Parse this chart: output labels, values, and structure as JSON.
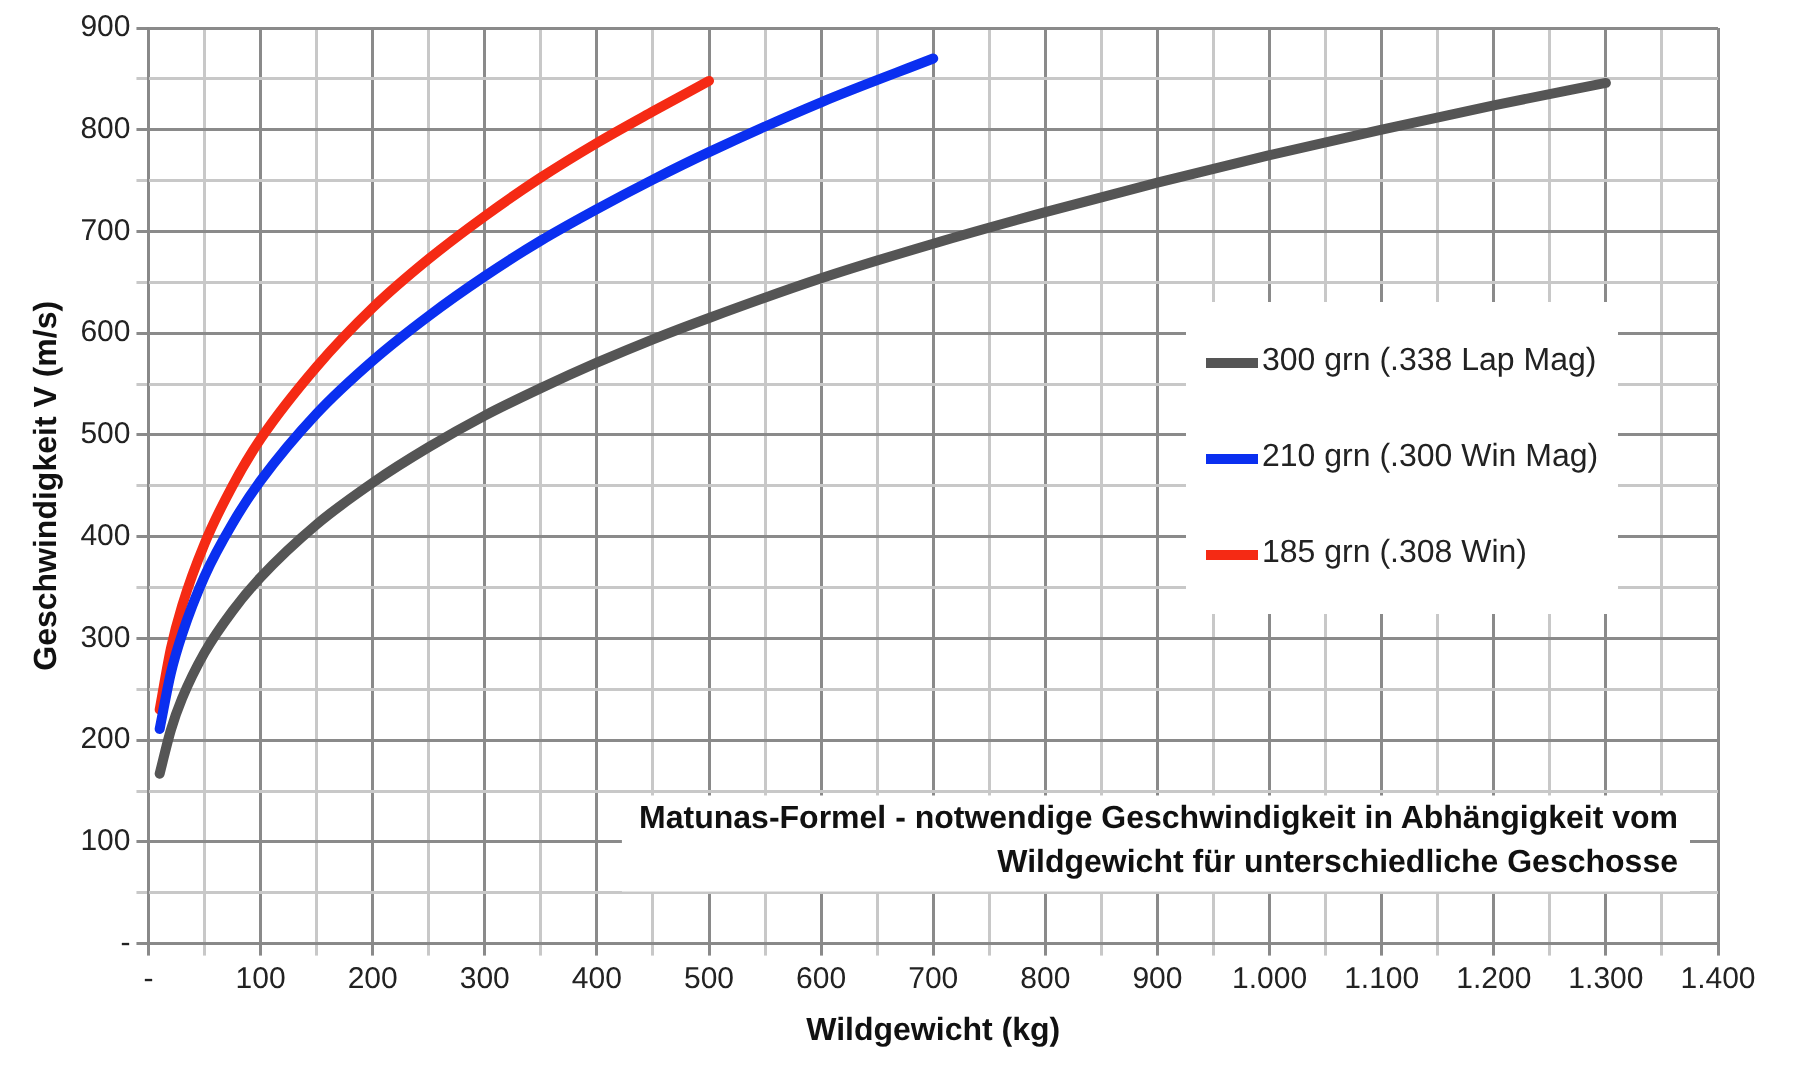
{
  "chart_data": {
    "type": "line",
    "title": "Matunas-Formel - notwendige Geschwindigkeit in Abhängigkeit vom\nWildgewicht für unterschiedliche Geschosse",
    "xlabel": "Wildgewicht (kg)",
    "ylabel": "Geschwindigkeit V (m/s)",
    "series": [
      {
        "name": "300 grn (.338 Lap Mag)",
        "color": "#555555",
        "x": [
          10,
          20,
          30,
          50,
          75,
          100,
          150,
          200,
          250,
          300,
          350,
          400,
          450,
          500,
          600,
          700,
          800,
          900,
          1000,
          1100,
          1200,
          1300
        ],
        "values": [
          167,
          210,
          241,
          286,
          327,
          360,
          412,
          453,
          488,
          519,
          546,
          571,
          594,
          615,
          654,
          688,
          719,
          748,
          775,
          800,
          824,
          846
        ]
      },
      {
        "name": "210 grn (.300 Win Mag)",
        "color": "#0a2ff0",
        "x": [
          10,
          20,
          30,
          50,
          75,
          100,
          150,
          200,
          250,
          300,
          350,
          400,
          450,
          500,
          600,
          700
        ],
        "values": [
          211,
          266,
          304,
          361,
          413,
          455,
          521,
          573,
          617,
          656,
          691,
          722,
          751,
          778,
          827,
          870
        ]
      },
      {
        "name": "185 grn (.308 Win)",
        "color": "#f52a14",
        "x": [
          10,
          20,
          30,
          50,
          75,
          100,
          150,
          200,
          250,
          300,
          350,
          400,
          450,
          500
        ],
        "values": [
          230,
          290,
          332,
          393,
          450,
          496,
          567,
          625,
          673,
          715,
          753,
          787,
          818,
          848
        ]
      }
    ],
    "xlim": [
      0,
      1400
    ],
    "xticks": [
      {
        "value": 0,
        "label": "-"
      },
      {
        "value": 50,
        "label": null
      },
      100,
      {
        "value": 150,
        "label": null
      },
      200,
      {
        "value": 250,
        "label": null
      },
      300,
      {
        "value": 350,
        "label": null
      },
      400,
      {
        "value": 450,
        "label": null
      },
      500,
      {
        "value": 550,
        "label": null
      },
      600,
      {
        "value": 650,
        "label": null
      },
      700,
      {
        "value": 750,
        "label": null
      },
      800,
      {
        "value": 850,
        "label": null
      },
      900,
      {
        "value": 950,
        "label": null
      },
      {
        "value": 1000,
        "label": "1.000"
      },
      {
        "value": 1050,
        "label": null
      },
      {
        "value": 1100,
        "label": "1.100"
      },
      {
        "value": 1150,
        "label": null
      },
      {
        "value": 1200,
        "label": "1.200"
      },
      {
        "value": 1250,
        "label": null
      },
      {
        "value": 1300,
        "label": "1.300"
      },
      {
        "value": 1350,
        "label": null
      },
      {
        "value": 1400,
        "label": "1.400"
      }
    ],
    "ylim": [
      0,
      900
    ],
    "yticks": [
      {
        "value": 0,
        "label": "-"
      },
      {
        "value": 50,
        "label": null
      },
      100,
      {
        "value": 150,
        "label": null
      },
      200,
      {
        "value": 250,
        "label": null
      },
      300,
      {
        "value": 350,
        "label": null
      },
      400,
      {
        "value": 450,
        "label": null
      },
      500,
      {
        "value": 550,
        "label": null
      },
      600,
      {
        "value": 650,
        "label": null
      },
      700,
      {
        "value": 750,
        "label": null
      },
      800,
      {
        "value": 850,
        "label": null
      },
      900
    ],
    "grid": true,
    "legend": "right",
    "marker": "none",
    "line_style": "solid"
  }
}
